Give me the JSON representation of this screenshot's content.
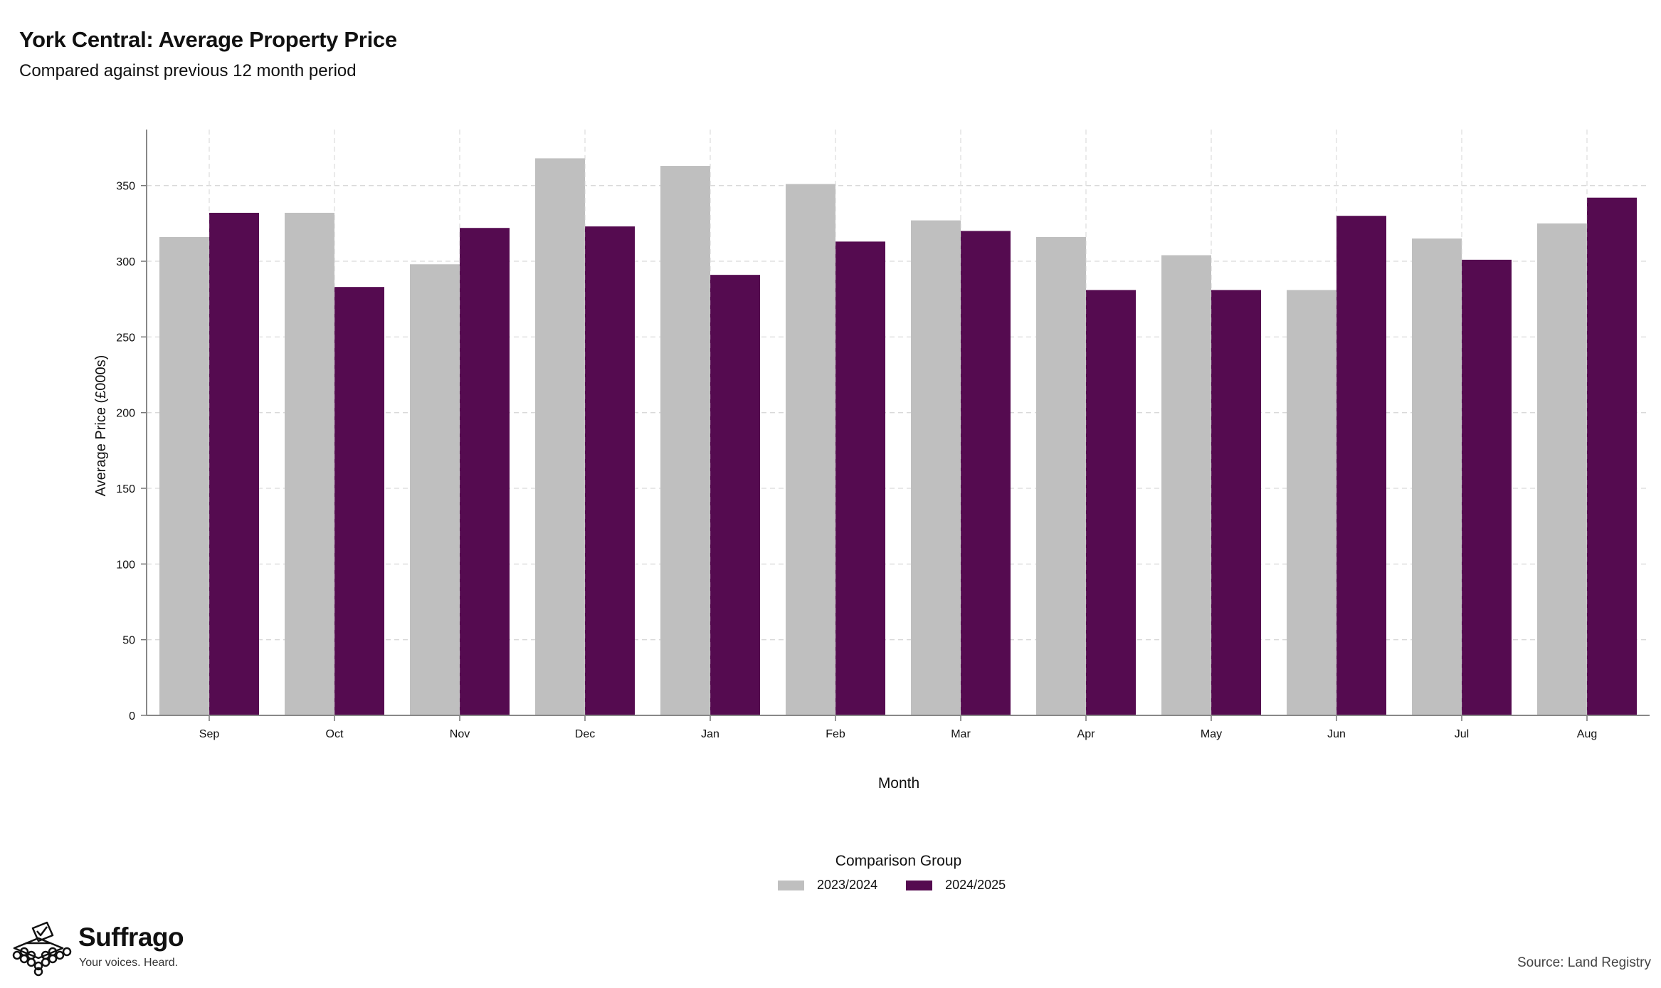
{
  "title": "York Central: Average Property Price",
  "subtitle": "Compared against previous 12 month period",
  "brand": {
    "name": "Suffrago",
    "tagline": "Your voices. Heard."
  },
  "source": "Source: Land Registry",
  "legend": {
    "title": "Comparison Group",
    "items": [
      {
        "label": "2023/2024",
        "color": "#bfbfbf"
      },
      {
        "label": "2024/2025",
        "color": "#550b50"
      }
    ]
  },
  "chart_data": {
    "type": "bar",
    "title": "York Central: Average Property Price",
    "subtitle": "Compared against previous 12 month period",
    "xlabel": "Month",
    "ylabel": "Average Price (£000s)",
    "categories": [
      "Sep",
      "Oct",
      "Nov",
      "Dec",
      "Jan",
      "Feb",
      "Mar",
      "Apr",
      "May",
      "Jun",
      "Jul",
      "Aug"
    ],
    "series": [
      {
        "name": "2023/2024",
        "color": "#bfbfbf",
        "values": [
          316,
          332,
          298,
          368,
          363,
          351,
          327,
          316,
          304,
          281,
          315,
          325
        ]
      },
      {
        "name": "2024/2025",
        "color": "#550b50",
        "values": [
          332,
          283,
          322,
          323,
          291,
          313,
          320,
          281,
          281,
          330,
          301,
          342
        ]
      }
    ],
    "ylim": [
      0,
      387
    ],
    "yticks": [
      0,
      50,
      100,
      150,
      200,
      250,
      300,
      350
    ],
    "grid": true,
    "legend_position": "bottom"
  }
}
